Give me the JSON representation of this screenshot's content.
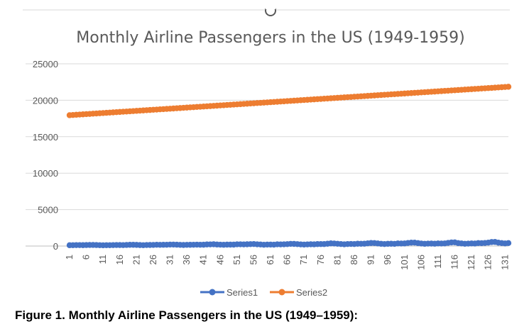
{
  "chart_data": {
    "type": "line",
    "title": "Monthly Airline Passengers in the US (1949-1959)",
    "xlabel": "",
    "ylabel": "",
    "ylim": [
      0,
      25000
    ],
    "yticks": [
      0,
      5000,
      10000,
      15000,
      20000,
      25000
    ],
    "x_start": 1,
    "x_end": 132,
    "x_tick_labels": [
      "1",
      "6",
      "11",
      "16",
      "21",
      "26",
      "31",
      "36",
      "41",
      "46",
      "51",
      "56",
      "61",
      "66",
      "71",
      "76",
      "81",
      "86",
      "91",
      "96",
      "101",
      "106",
      "111",
      "116",
      "121",
      "126",
      "131"
    ],
    "grid": true,
    "legend_position": "bottom",
    "series": [
      {
        "name": "Series1",
        "color": "#4472C4",
        "values": [
          112,
          118,
          132,
          129,
          121,
          135,
          148,
          148,
          136,
          119,
          104,
          118,
          115,
          126,
          141,
          135,
          125,
          149,
          170,
          170,
          158,
          133,
          114,
          140,
          145,
          150,
          178,
          163,
          172,
          178,
          199,
          199,
          184,
          162,
          146,
          166,
          171,
          180,
          193,
          181,
          183,
          218,
          230,
          242,
          209,
          191,
          172,
          194,
          196,
          196,
          236,
          235,
          229,
          243,
          264,
          272,
          237,
          211,
          180,
          201,
          204,
          188,
          235,
          227,
          234,
          264,
          302,
          293,
          259,
          229,
          203,
          229,
          242,
          233,
          267,
          269,
          270,
          315,
          364,
          347,
          312,
          274,
          237,
          278,
          284,
          277,
          317,
          313,
          318,
          374,
          413,
          405,
          355,
          306,
          271,
          306,
          315,
          301,
          356,
          348,
          355,
          422,
          465,
          467,
          404,
          347,
          305,
          336,
          340,
          318,
          362,
          348,
          363,
          435,
          491,
          505,
          404,
          359,
          310,
          337,
          360,
          342,
          406,
          396,
          420,
          472,
          548,
          559,
          463,
          407,
          362,
          405
        ]
      },
      {
        "name": "Series2",
        "color": "#ED7D31",
        "linear": {
          "start": 17950,
          "end": 21850
        }
      }
    ]
  },
  "caption": "Figure 1. Monthly Airline Passengers in the US (1949–1959):"
}
